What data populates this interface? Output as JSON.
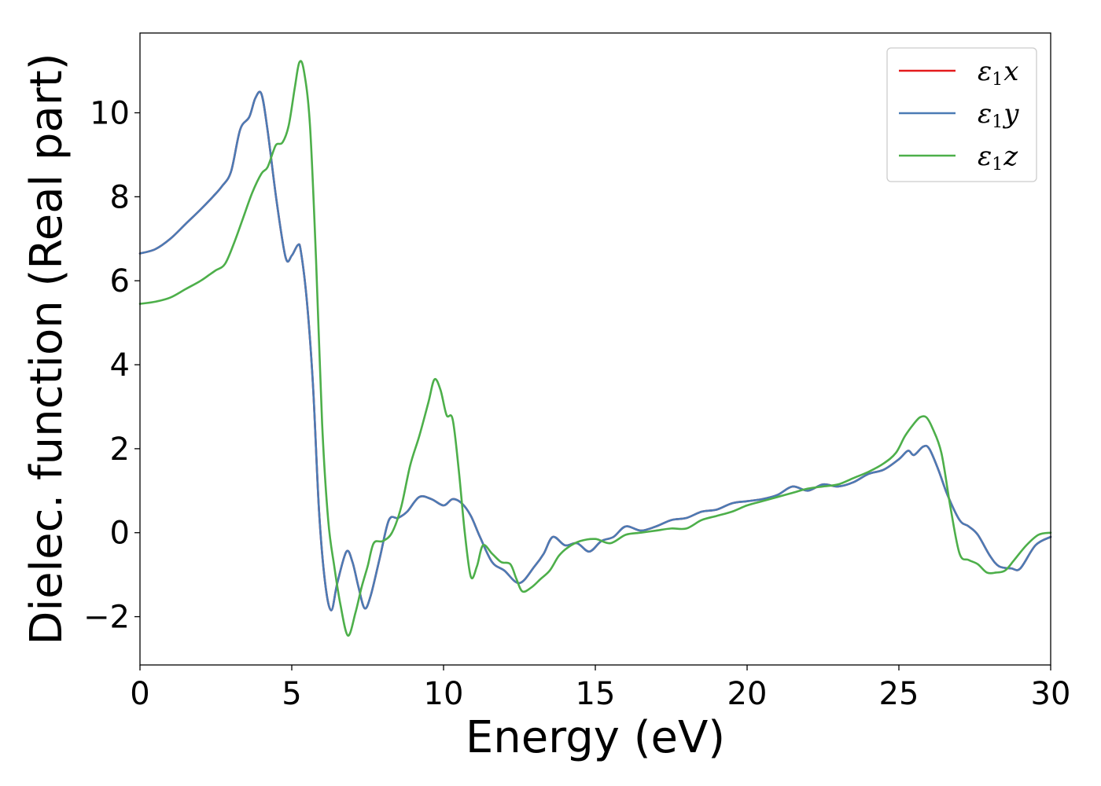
{
  "chart_data": {
    "type": "line",
    "title": "",
    "xlabel": "Energy (eV)",
    "ylabel": "Dielec. function (Real part)",
    "xlim": [
      0,
      30
    ],
    "ylim": [
      -3.15,
      11.9
    ],
    "xticks": [
      0,
      5,
      10,
      15,
      20,
      25,
      30
    ],
    "yticks": [
      -2,
      0,
      2,
      4,
      6,
      8,
      10
    ],
    "grid": false,
    "legend_position": "top-right",
    "series": [
      {
        "name": "ε1x",
        "legend": {
          "base": "ε",
          "sub": "1",
          "axis": "x"
        },
        "color": "#e41a1c",
        "x": [
          0,
          0.5,
          1.0,
          1.5,
          2.0,
          2.4,
          2.7,
          3.0,
          3.3,
          3.6,
          3.8,
          4.0,
          4.2,
          4.5,
          4.8,
          5.0,
          5.2,
          5.3,
          5.5,
          5.7,
          5.9,
          6.1,
          6.3,
          6.5,
          6.8,
          7.0,
          7.2,
          7.4,
          7.6,
          7.9,
          8.2,
          8.5,
          8.8,
          9.2,
          9.6,
          10.0,
          10.3,
          10.6,
          10.9,
          11.2,
          11.6,
          12.0,
          12.5,
          13.0,
          13.3,
          13.6,
          14.0,
          14.4,
          14.8,
          15.2,
          15.6,
          16.0,
          16.5,
          17.0,
          17.5,
          18.0,
          18.5,
          19.0,
          19.5,
          20.0,
          20.5,
          21.0,
          21.5,
          22.0,
          22.5,
          23.0,
          23.5,
          24.0,
          24.5,
          25.0,
          25.3,
          25.5,
          25.8,
          26.0,
          26.3,
          26.6,
          27.0,
          27.3,
          27.6,
          28.0,
          28.3,
          28.7,
          29.0,
          29.5,
          30.0
        ],
        "y": [
          6.65,
          6.75,
          7.0,
          7.35,
          7.7,
          8.0,
          8.25,
          8.6,
          9.6,
          9.9,
          10.35,
          10.45,
          9.6,
          7.9,
          6.55,
          6.6,
          6.85,
          6.7,
          5.5,
          3.5,
          0.5,
          -1.2,
          -1.85,
          -1.2,
          -0.45,
          -0.7,
          -1.3,
          -1.8,
          -1.5,
          -0.6,
          0.3,
          0.35,
          0.5,
          0.85,
          0.8,
          0.65,
          0.8,
          0.7,
          0.4,
          -0.1,
          -0.7,
          -0.9,
          -1.2,
          -0.8,
          -0.5,
          -0.1,
          -0.3,
          -0.25,
          -0.45,
          -0.2,
          -0.1,
          0.15,
          0.05,
          0.15,
          0.3,
          0.35,
          0.5,
          0.55,
          0.7,
          0.75,
          0.8,
          0.9,
          1.1,
          1.0,
          1.15,
          1.1,
          1.2,
          1.4,
          1.5,
          1.75,
          1.95,
          1.85,
          2.05,
          2.0,
          1.5,
          0.9,
          0.3,
          0.15,
          -0.05,
          -0.55,
          -0.8,
          -0.85,
          -0.85,
          -0.3,
          -0.1
        ]
      },
      {
        "name": "ε1y",
        "legend": {
          "base": "ε",
          "sub": "1",
          "axis": "y"
        },
        "color": "#4b7bb5",
        "x": [
          0,
          0.5,
          1.0,
          1.5,
          2.0,
          2.4,
          2.7,
          3.0,
          3.3,
          3.6,
          3.8,
          4.0,
          4.2,
          4.5,
          4.8,
          5.0,
          5.2,
          5.3,
          5.5,
          5.7,
          5.9,
          6.1,
          6.3,
          6.5,
          6.8,
          7.0,
          7.2,
          7.4,
          7.6,
          7.9,
          8.2,
          8.5,
          8.8,
          9.2,
          9.6,
          10.0,
          10.3,
          10.6,
          10.9,
          11.2,
          11.6,
          12.0,
          12.5,
          13.0,
          13.3,
          13.6,
          14.0,
          14.4,
          14.8,
          15.2,
          15.6,
          16.0,
          16.5,
          17.0,
          17.5,
          18.0,
          18.5,
          19.0,
          19.5,
          20.0,
          20.5,
          21.0,
          21.5,
          22.0,
          22.5,
          23.0,
          23.5,
          24.0,
          24.5,
          25.0,
          25.3,
          25.5,
          25.8,
          26.0,
          26.3,
          26.6,
          27.0,
          27.3,
          27.6,
          28.0,
          28.3,
          28.7,
          29.0,
          29.5,
          30.0
        ],
        "y": [
          6.65,
          6.75,
          7.0,
          7.35,
          7.7,
          8.0,
          8.25,
          8.6,
          9.6,
          9.9,
          10.35,
          10.45,
          9.6,
          7.9,
          6.55,
          6.6,
          6.85,
          6.7,
          5.5,
          3.5,
          0.5,
          -1.2,
          -1.85,
          -1.2,
          -0.45,
          -0.7,
          -1.3,
          -1.8,
          -1.5,
          -0.6,
          0.3,
          0.35,
          0.5,
          0.85,
          0.8,
          0.65,
          0.8,
          0.7,
          0.4,
          -0.1,
          -0.7,
          -0.9,
          -1.2,
          -0.8,
          -0.5,
          -0.1,
          -0.3,
          -0.25,
          -0.45,
          -0.2,
          -0.1,
          0.15,
          0.05,
          0.15,
          0.3,
          0.35,
          0.5,
          0.55,
          0.7,
          0.75,
          0.8,
          0.9,
          1.1,
          1.0,
          1.15,
          1.1,
          1.2,
          1.4,
          1.5,
          1.75,
          1.95,
          1.85,
          2.05,
          2.0,
          1.5,
          0.9,
          0.3,
          0.15,
          -0.05,
          -0.55,
          -0.8,
          -0.85,
          -0.85,
          -0.3,
          -0.1
        ]
      },
      {
        "name": "ε1z",
        "legend": {
          "base": "ε",
          "sub": "1",
          "axis": "z"
        },
        "color": "#4daf4a",
        "x": [
          0,
          0.5,
          1.0,
          1.5,
          2.0,
          2.3,
          2.5,
          2.8,
          3.1,
          3.4,
          3.7,
          4.0,
          4.2,
          4.4,
          4.5,
          4.7,
          4.9,
          5.1,
          5.25,
          5.4,
          5.6,
          5.8,
          6.0,
          6.2,
          6.4,
          6.6,
          6.85,
          7.1,
          7.3,
          7.5,
          7.7,
          8.0,
          8.3,
          8.6,
          8.9,
          9.2,
          9.5,
          9.7,
          9.9,
          10.1,
          10.3,
          10.5,
          10.7,
          10.9,
          11.1,
          11.3,
          11.6,
          11.9,
          12.2,
          12.4,
          12.6,
          12.9,
          13.2,
          13.5,
          13.8,
          14.1,
          14.5,
          15.0,
          15.5,
          16.0,
          16.5,
          17.0,
          17.5,
          18.0,
          18.5,
          19.0,
          19.5,
          20.0,
          20.5,
          21.0,
          21.5,
          22.0,
          22.5,
          23.0,
          23.5,
          24.0,
          24.5,
          24.9,
          25.2,
          25.5,
          25.7,
          25.9,
          26.1,
          26.4,
          26.7,
          27.0,
          27.3,
          27.6,
          27.9,
          28.2,
          28.5,
          28.8,
          29.2,
          29.6,
          30.0
        ],
        "y": [
          5.45,
          5.5,
          5.6,
          5.8,
          6.0,
          6.15,
          6.25,
          6.4,
          6.9,
          7.5,
          8.1,
          8.55,
          8.7,
          9.1,
          9.25,
          9.3,
          9.7,
          10.6,
          11.2,
          11.0,
          9.7,
          6.5,
          2.6,
          0.3,
          -0.8,
          -1.7,
          -2.45,
          -1.9,
          -1.3,
          -0.8,
          -0.25,
          -0.2,
          0.0,
          0.6,
          1.6,
          2.3,
          3.1,
          3.65,
          3.4,
          2.8,
          2.7,
          1.5,
          0.0,
          -1.05,
          -0.8,
          -0.3,
          -0.5,
          -0.7,
          -0.75,
          -1.1,
          -1.4,
          -1.3,
          -1.1,
          -0.9,
          -0.55,
          -0.35,
          -0.2,
          -0.15,
          -0.25,
          -0.05,
          0.0,
          0.05,
          0.1,
          0.1,
          0.3,
          0.4,
          0.5,
          0.65,
          0.75,
          0.85,
          0.95,
          1.05,
          1.1,
          1.15,
          1.3,
          1.45,
          1.65,
          1.9,
          2.3,
          2.6,
          2.75,
          2.75,
          2.5,
          1.9,
          0.6,
          -0.5,
          -0.65,
          -0.75,
          -0.95,
          -0.95,
          -0.9,
          -0.65,
          -0.3,
          -0.05,
          0.0
        ]
      }
    ]
  }
}
